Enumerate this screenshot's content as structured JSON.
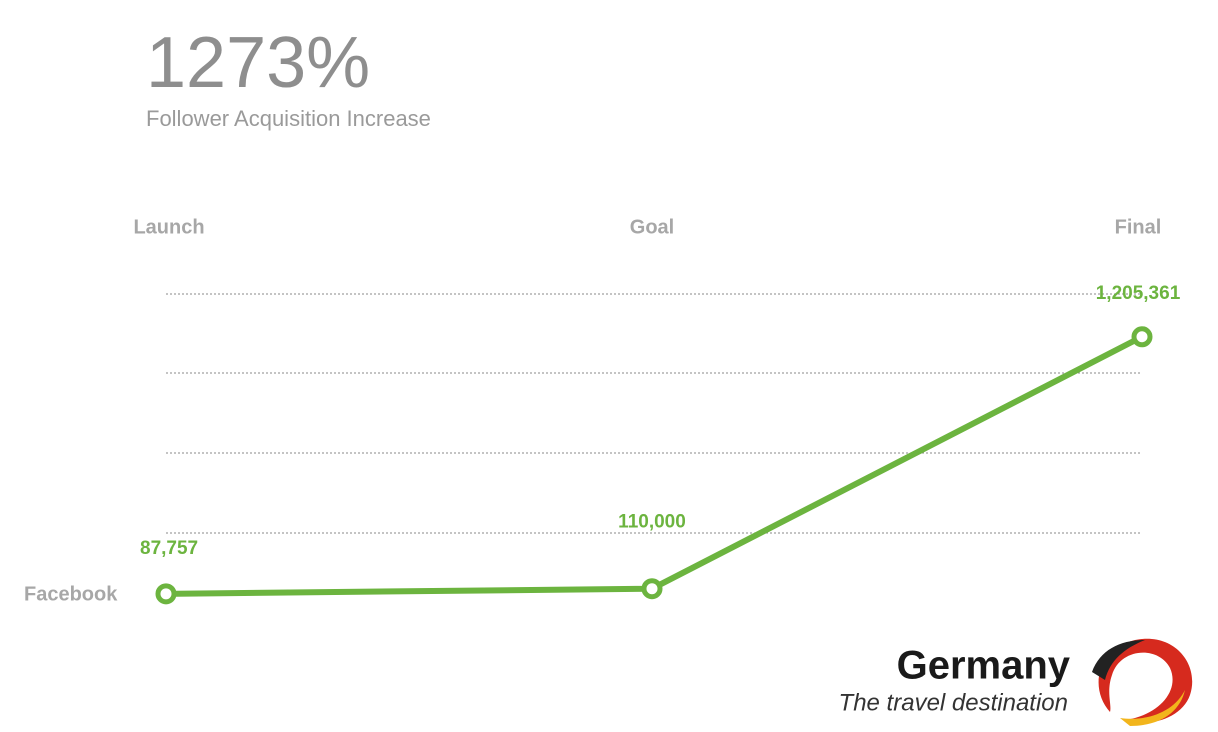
{
  "chart_data": {
    "type": "line",
    "headline": "1273%",
    "subtitle": "Follower Acquisition Increase",
    "categories": [
      "Launch",
      "Goal",
      "Final"
    ],
    "series": [
      {
        "name": "Facebook",
        "color": "#6cb43f",
        "values": [
          87757,
          110000,
          1205361
        ],
        "value_labels": [
          "87,757",
          "110,000",
          "1,205,361"
        ]
      }
    ],
    "ylim": [
      0,
      1400000
    ]
  },
  "logo": {
    "name": "Germany",
    "tagline": "The travel destination"
  }
}
